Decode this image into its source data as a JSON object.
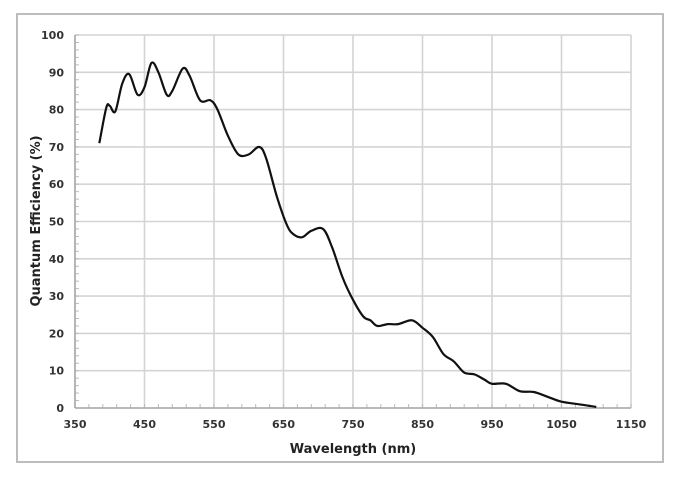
{
  "chart_data": {
    "type": "line",
    "title": "",
    "xlabel": "Wavelength (nm)",
    "ylabel": "Quantum Efficiency (%)",
    "xlim": [
      350,
      1150
    ],
    "ylim": [
      0,
      100
    ],
    "xticks": [
      350,
      450,
      550,
      650,
      750,
      850,
      950,
      1050,
      1150
    ],
    "yticks": [
      0,
      10,
      20,
      30,
      40,
      50,
      60,
      70,
      80,
      90,
      100
    ],
    "grid": true,
    "legend": "none",
    "line_color": "#111111",
    "grid_color": "#d4d4d4",
    "series": [
      {
        "x": [
          385,
          395,
          400,
          408,
          418,
          428,
          440,
          450,
          460,
          470,
          482,
          490,
          505,
          515,
          530,
          545,
          555,
          570,
          585,
          600,
          615,
          625,
          640,
          655,
          665,
          677,
          690,
          707,
          720,
          735,
          750,
          765,
          775,
          785,
          800,
          815,
          835,
          850,
          865,
          880,
          895,
          910,
          925,
          940,
          950,
          970,
          990,
          1010,
          1030,
          1050,
          1075,
          1100
        ],
        "y": [
          71,
          80.5,
          81,
          79.5,
          87,
          89.5,
          84,
          86,
          92.5,
          90,
          84,
          85,
          91,
          89,
          82.5,
          82.5,
          80,
          73,
          68,
          68,
          70,
          67,
          57,
          49,
          46.5,
          45.8,
          47.5,
          48,
          43,
          35,
          29,
          24.5,
          23.5,
          22,
          22.5,
          22.5,
          23.5,
          21.5,
          19,
          14.5,
          12.5,
          9.5,
          9,
          7.5,
          6.5,
          6.5,
          4.5,
          4.3,
          3,
          1.7,
          1,
          0.3
        ]
      }
    ]
  }
}
